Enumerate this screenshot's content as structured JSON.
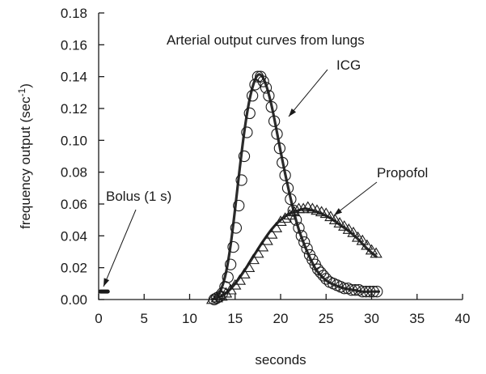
{
  "chart_data": {
    "type": "scatter",
    "title": "Arterial output curves from lungs",
    "xlabel": "seconds",
    "ylabel_main": "frequency output (sec",
    "ylabel_sup": "-1",
    "ylabel_close": ")",
    "xlim": [
      0,
      40
    ],
    "ylim": [
      0,
      0.18
    ],
    "x_ticks": [
      "0",
      "5",
      "10",
      "15",
      "20",
      "25",
      "30",
      "35",
      "40"
    ],
    "y_ticks": [
      "0.00",
      "0.02",
      "0.04",
      "0.06",
      "0.08",
      "0.10",
      "0.12",
      "0.14",
      "0.16",
      "0.18"
    ],
    "grid": false,
    "series": [
      {
        "name": "ICG",
        "marker": "circle",
        "x": [
          12.7,
          13.0,
          13.3,
          13.6,
          13.9,
          14.2,
          14.5,
          14.8,
          15.1,
          15.4,
          15.7,
          16.0,
          16.3,
          16.6,
          16.9,
          17.2,
          17.5,
          17.8,
          18.1,
          18.4,
          18.7,
          19.0,
          19.3,
          19.6,
          19.9,
          20.2,
          20.5,
          20.8,
          21.1,
          21.4,
          21.7,
          22.0,
          22.3,
          22.6,
          22.9,
          23.2,
          23.5,
          23.8,
          24.1,
          24.4,
          24.7,
          25.0,
          25.4,
          25.8,
          26.2,
          26.6,
          27.0,
          27.4,
          27.8,
          28.2,
          28.6,
          29.0,
          29.4,
          29.8,
          30.2,
          30.6
        ],
        "y": [
          0.0,
          0.001,
          0.002,
          0.004,
          0.008,
          0.014,
          0.022,
          0.033,
          0.045,
          0.059,
          0.075,
          0.09,
          0.105,
          0.117,
          0.128,
          0.135,
          0.14,
          0.14,
          0.137,
          0.133,
          0.128,
          0.121,
          0.112,
          0.104,
          0.095,
          0.086,
          0.078,
          0.07,
          0.063,
          0.056,
          0.05,
          0.045,
          0.04,
          0.036,
          0.032,
          0.028,
          0.025,
          0.022,
          0.019,
          0.017,
          0.015,
          0.013,
          0.011,
          0.01,
          0.009,
          0.008,
          0.007,
          0.007,
          0.006,
          0.006,
          0.006,
          0.005,
          0.005,
          0.005,
          0.005,
          0.005
        ]
      },
      {
        "name": "Propofol",
        "marker": "triangle",
        "x": [
          12.5,
          13.0,
          13.5,
          14.0,
          14.5,
          15.0,
          15.5,
          16.0,
          16.5,
          17.0,
          17.5,
          18.0,
          18.5,
          19.0,
          19.5,
          20.0,
          20.5,
          21.0,
          21.5,
          22.0,
          22.5,
          23.0,
          23.5,
          24.0,
          24.5,
          25.0,
          25.5,
          26.0,
          26.5,
          27.0,
          27.5,
          28.0,
          28.5,
          29.0,
          29.5,
          30.0,
          30.5
        ],
        "y": [
          0.0,
          0.001,
          0.002,
          0.004,
          0.006,
          0.009,
          0.012,
          0.016,
          0.02,
          0.025,
          0.029,
          0.033,
          0.037,
          0.041,
          0.045,
          0.049,
          0.051,
          0.053,
          0.055,
          0.057,
          0.057,
          0.058,
          0.057,
          0.056,
          0.055,
          0.054,
          0.052,
          0.05,
          0.048,
          0.046,
          0.044,
          0.042,
          0.039,
          0.037,
          0.034,
          0.031,
          0.029
        ]
      }
    ],
    "fit_curves": [
      {
        "x": [
          12.5,
          13.0,
          13.5,
          14.0,
          14.5,
          15.0,
          15.5,
          16.0,
          16.5,
          17.0,
          17.5,
          18.0,
          18.5,
          19.0,
          19.5,
          20.0,
          20.5,
          21.0,
          21.5,
          22.0,
          22.5,
          23.0,
          23.5,
          24.0,
          25.0,
          26.0,
          27.0,
          28.0,
          29.0,
          30.0,
          30.8
        ],
        "y": [
          0.0,
          0.002,
          0.007,
          0.017,
          0.034,
          0.057,
          0.082,
          0.105,
          0.123,
          0.135,
          0.141,
          0.14,
          0.133,
          0.122,
          0.108,
          0.093,
          0.079,
          0.066,
          0.054,
          0.044,
          0.036,
          0.029,
          0.023,
          0.018,
          0.012,
          0.009,
          0.007,
          0.006,
          0.005,
          0.005,
          0.005
        ]
      },
      {
        "x": [
          12.5,
          13.0,
          14.0,
          15.0,
          16.0,
          17.0,
          18.0,
          19.0,
          20.0,
          21.0,
          22.0,
          22.7,
          23.5,
          24.5,
          25.5,
          26.5,
          27.5,
          28.5,
          29.5,
          30.5
        ],
        "y": [
          0.0,
          0.001,
          0.004,
          0.01,
          0.018,
          0.027,
          0.036,
          0.044,
          0.05,
          0.054,
          0.056,
          0.057,
          0.056,
          0.054,
          0.051,
          0.047,
          0.043,
          0.038,
          0.032,
          0.027
        ]
      }
    ],
    "bolus": {
      "label": "Bolus (1 s)",
      "x": [
        0.0,
        1.0
      ],
      "y": 0.005
    },
    "annotations": [
      {
        "text": "ICG",
        "target_series": "ICG"
      },
      {
        "text": "Propofol",
        "target_series": "Propofol"
      },
      {
        "text": "Bolus (1 s)",
        "target_series": "bolus"
      }
    ]
  }
}
